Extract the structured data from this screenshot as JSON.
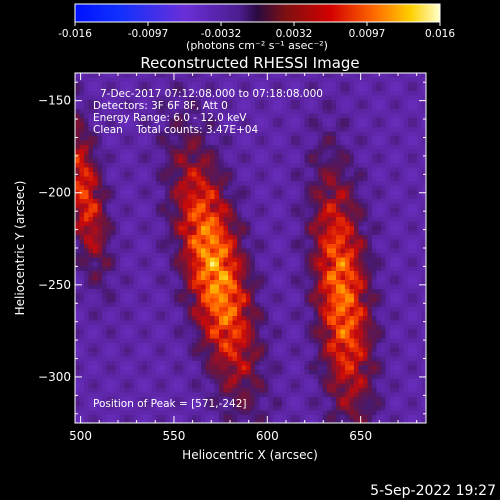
{
  "chart_data": {
    "type": "heatmap",
    "title": "Reconstructed RHESSI Image",
    "xlabel": "Heliocentric X (arcsec)",
    "ylabel": "Heliocentric Y (arcsec)",
    "xlim": [
      497,
      685
    ],
    "ylim": [
      -325,
      -135
    ],
    "x_ticks": [
      500,
      550,
      600,
      650
    ],
    "y_ticks": [
      -150,
      -200,
      -250,
      -300
    ],
    "colorbar": {
      "range": [
        -0.016,
        0.016
      ],
      "ticks": [
        "-0.016",
        "-0.0097",
        "-0.0032",
        "0.0032",
        "0.0097",
        "0.016"
      ],
      "unit_label": "(photons cm⁻² s⁻¹ asec⁻²)"
    },
    "info_lines": [
      "7-Dec-2017 07:12:08.000 to 07:18:08.000",
      "Detectors: 3F 6F 8F, Att 0",
      "Energy Range: 6.0 - 12.0 keV",
      "Clean    Total counts: 3.47E+04"
    ],
    "peak_label": "Position of Peak = [571,-242]",
    "peak": {
      "x": 571,
      "y": -242
    },
    "sources": [
      {
        "x": 502,
        "y": -200,
        "sx": 7,
        "sy": 30,
        "amp": 0.011,
        "angle_deg": -10
      },
      {
        "x": 572,
        "y": -242,
        "sx": 11,
        "sy": 45,
        "amp": 0.016,
        "angle_deg": -12
      },
      {
        "x": 640,
        "y": -255,
        "sx": 10,
        "sy": 46,
        "amp": 0.014,
        "angle_deg": -5
      }
    ],
    "timestamp": "5-Sep-2022 19:27"
  }
}
